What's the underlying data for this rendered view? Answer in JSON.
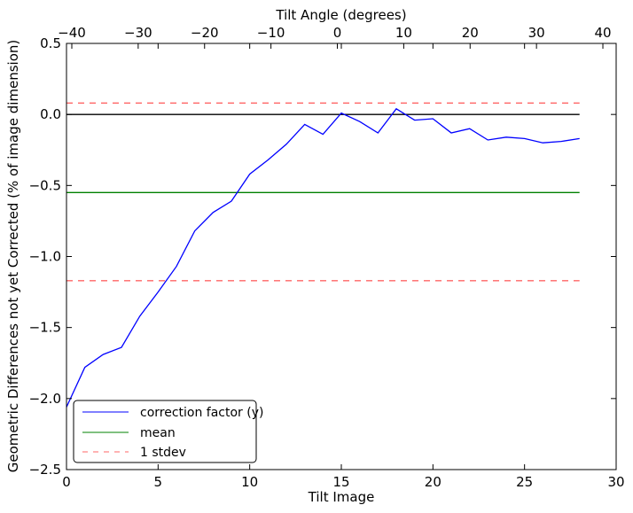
{
  "chart_data": {
    "type": "line",
    "xlabel": "Tilt Image",
    "ylabel": "Geometric Differences not yet Corrected (% of image dimension)",
    "top_xlabel": "Tilt Angle (degrees)",
    "xlim": [
      0,
      30
    ],
    "ylim": [
      -2.5,
      0.5
    ],
    "top_xlim": [
      -40.8,
      42
    ],
    "xticks": [
      0,
      5,
      10,
      15,
      20,
      25,
      30
    ],
    "yticks": [
      -2.5,
      -2.0,
      -1.5,
      -1.0,
      -0.5,
      0.0,
      0.5
    ],
    "ytick_labels": [
      "−2.5",
      "−2.0",
      "−1.5",
      "−1.0",
      "−0.5",
      "0.0",
      "0.5"
    ],
    "top_xticks": [
      -40,
      -30,
      -20,
      -10,
      0,
      10,
      20,
      30,
      40
    ],
    "top_xtick_labels": [
      "−40",
      "−30",
      "−20",
      "−10",
      "0",
      "10",
      "20",
      "30",
      "40"
    ],
    "grid": false,
    "legend_position": "lower-left",
    "series": [
      {
        "name": "correction factor (y)",
        "color": "#0000ff",
        "style": "solid",
        "x": [
          0,
          1,
          2,
          3,
          4,
          5,
          6,
          7,
          8,
          9,
          10,
          11,
          12,
          13,
          14,
          15,
          16,
          17,
          18,
          19,
          20,
          21,
          22,
          23,
          24,
          25,
          26,
          27,
          28
        ],
        "y": [
          -2.06,
          -1.78,
          -1.69,
          -1.64,
          -1.42,
          -1.25,
          -1.07,
          -0.82,
          -0.69,
          -0.61,
          -0.42,
          -0.32,
          -0.21,
          -0.07,
          -0.14,
          0.01,
          -0.05,
          -0.13,
          0.04,
          -0.04,
          -0.03,
          -0.13,
          -0.1,
          -0.18,
          -0.16,
          -0.17,
          -0.2,
          -0.19,
          -0.17
        ]
      },
      {
        "name": "mean",
        "color": "#008000",
        "style": "solid",
        "x": [
          0,
          28
        ],
        "y": [
          -0.55,
          -0.55
        ]
      },
      {
        "name": "1 stdev",
        "color": "#ff6666",
        "style": "dashed",
        "x": [
          0,
          28
        ],
        "y": [
          0.08,
          0.08
        ]
      },
      {
        "name": "",
        "color": "#ff6666",
        "style": "dashed",
        "x": [
          0,
          28
        ],
        "y": [
          -1.17,
          -1.17
        ]
      },
      {
        "name": "",
        "color": "#000000",
        "style": "solid",
        "x": [
          0,
          28
        ],
        "y": [
          0,
          0
        ]
      }
    ]
  }
}
